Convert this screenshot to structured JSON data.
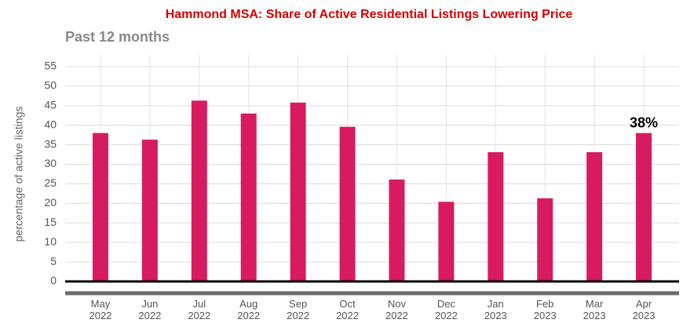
{
  "chart_data": {
    "type": "bar",
    "title": "Hammond MSA: Share of Active Residential Listings Lowering Price",
    "subtitle": "Past 12 months",
    "y_label": "percentage of active listings",
    "categories": [
      "May 2022",
      "Jun 2022",
      "Jul 2022",
      "Aug 2022",
      "Sep 2022",
      "Oct 2022",
      "Nov 2022",
      "Dec 2022",
      "Jan 2023",
      "Feb 2023",
      "Mar 2023",
      "Apr 2023"
    ],
    "values": [
      38,
      36.3,
      46.3,
      43,
      45.8,
      39.6,
      26.1,
      20.4,
      33.1,
      21.3,
      33.1,
      38
    ],
    "value_labels": [
      null,
      null,
      null,
      null,
      null,
      null,
      null,
      null,
      null,
      null,
      null,
      "38%"
    ],
    "color": "#d81b60",
    "ylim": [
      0,
      55
    ],
    "yticks": [
      0,
      5,
      10,
      15,
      20,
      25,
      30,
      35,
      40,
      45,
      50,
      55
    ],
    "grid": true
  }
}
